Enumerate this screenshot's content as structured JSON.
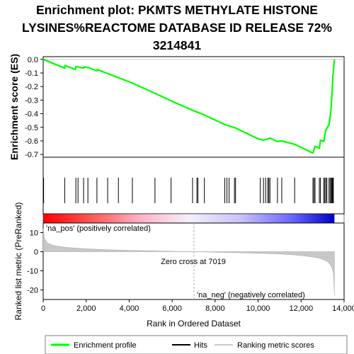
{
  "title_lines": [
    "Enrichment plot: PKMTS METHYLATE HISTONE",
    "LYSINES%REACTOME DATABASE ID RELEASE 72%",
    "3214841"
  ],
  "chart_data": {
    "type": "line",
    "ylabel_top": "Enrichment score (ES)",
    "ylabel_bottom": "Ranked list metric (PreRanked)",
    "xlabel": "Rank in Ordered Dataset",
    "xlim": [
      0,
      14000
    ],
    "es_ylim": [
      -0.72,
      0.02
    ],
    "es_yticks": [
      0.0,
      -0.1,
      -0.2,
      -0.3,
      -0.4,
      -0.5,
      -0.6,
      -0.7
    ],
    "es_ytick_labels": [
      "0.0",
      "-0.1",
      "-0.2",
      "-0.3",
      "-0.4",
      "-0.5",
      "-0.6",
      "-0.7"
    ],
    "metric_ylim": [
      -25,
      15
    ],
    "metric_yticks": [
      10,
      0,
      -10,
      -20
    ],
    "metric_ytick_labels": [
      "10",
      "0",
      "-10",
      "-20"
    ],
    "xticks": [
      0,
      2000,
      4000,
      6000,
      8000,
      10000,
      12000,
      14000
    ],
    "xtick_labels": [
      "0",
      "2,000",
      "4,000",
      "6,000",
      "8,000",
      "10,000",
      "12,000",
      "14,000"
    ],
    "n_genes": 13550,
    "zero_cross": 7019,
    "zero_cross_label": "Zero cross at 7019",
    "pos_label": "'na_pos' (positively correlated)",
    "neg_label": "'na_neg' (negatively correlated)",
    "hits": [
      20,
      1000,
      1520,
      1620,
      1880,
      2080,
      2500,
      3000,
      3500,
      4150,
      5200,
      5950,
      6950,
      7150,
      7200,
      7500,
      8450,
      8550,
      8650,
      8900,
      8950,
      10100,
      10250,
      10350,
      10450,
      10500,
      10550,
      10900,
      11100,
      11700,
      12550,
      12600,
      12650,
      12850,
      12900,
      13050,
      13100,
      13150,
      13200,
      13300,
      13350,
      13400,
      13420,
      13450,
      13480,
      13500
    ],
    "es_curve": {
      "x": [
        0,
        1000,
        1020,
        1500,
        1520,
        1620,
        1880,
        1900,
        2080,
        2100,
        2500,
        2520,
        3000,
        3500,
        4150,
        5200,
        5950,
        6950,
        7200,
        7500,
        8450,
        8950,
        10000,
        10250,
        10550,
        10900,
        11100,
        11700,
        12550,
        12650,
        12850,
        12900,
        13050,
        13150,
        13300,
        13350,
        13400,
        13450,
        13480,
        13500,
        13550
      ],
      "y": [
        0.0,
        -0.065,
        -0.045,
        -0.075,
        -0.055,
        -0.055,
        -0.065,
        -0.055,
        -0.06,
        -0.06,
        -0.085,
        -0.075,
        -0.105,
        -0.135,
        -0.175,
        -0.25,
        -0.305,
        -0.375,
        -0.39,
        -0.41,
        -0.48,
        -0.505,
        -0.585,
        -0.595,
        -0.58,
        -0.605,
        -0.6,
        -0.625,
        -0.69,
        -0.64,
        -0.655,
        -0.595,
        -0.605,
        -0.52,
        -0.48,
        -0.42,
        -0.35,
        -0.22,
        -0.12,
        -0.1,
        0.0
      ]
    },
    "metric_curve": {
      "x": [
        0,
        50,
        200,
        500,
        1000,
        2000,
        3000,
        4000,
        5000,
        6000,
        7019,
        8000,
        9000,
        10000,
        11000,
        11500,
        12000,
        12500,
        12800,
        13000,
        13200,
        13300,
        13400,
        13450,
        13500,
        13530,
        13550
      ],
      "y": [
        12,
        7,
        4.5,
        3.2,
        2.3,
        1.5,
        1.0,
        0.7,
        0.45,
        0.2,
        0,
        -0.25,
        -0.5,
        -0.8,
        -1.2,
        -1.5,
        -2.0,
        -2.7,
        -3.3,
        -4.0,
        -5.0,
        -6.0,
        -7.5,
        -9.0,
        -11.0,
        -15.0,
        -23.0
      ]
    },
    "colors": {
      "es_line": "#00ff00",
      "hit": "#000000",
      "metric_fill": "#c8c8c8",
      "zero_line": "#b0b0b0",
      "pos_label": "#ff0000",
      "neg_label": "#0000ff",
      "bar_red": "#ff0000",
      "bar_blue": "#0000ff"
    },
    "legend": {
      "placement": "bottom",
      "entries": [
        {
          "label": "Enrichment profile",
          "color": "#00ff00",
          "style": "line"
        },
        {
          "label": "Hits",
          "color": "#000000",
          "style": "line"
        },
        {
          "label": "Ranking metric scores",
          "color": "#c8c8c8",
          "style": "line"
        }
      ]
    }
  }
}
